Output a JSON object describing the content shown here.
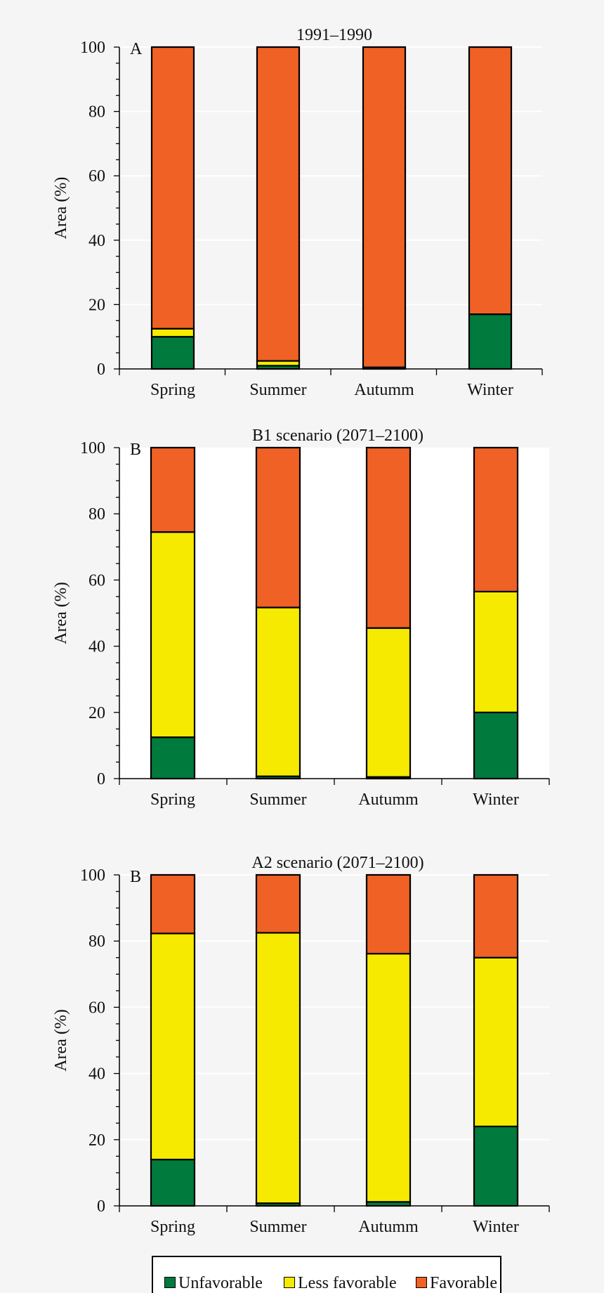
{
  "colors": {
    "Unfavorable": "#007a3d",
    "Less favorable": "#f6ea00",
    "Favorable": "#f06125",
    "background": "#f5f5f5"
  },
  "legend": {
    "items": [
      "Unfavorable",
      "Less favorable",
      "Favorable"
    ]
  },
  "chart_data": [
    {
      "type": "bar",
      "stacked": true,
      "title": "1991–1990",
      "panel_label": "A",
      "ylabel": "Area (%)",
      "ylim": [
        0,
        100
      ],
      "yticks": [
        0,
        20,
        40,
        60,
        80,
        100
      ],
      "grid": true,
      "plot_background": "#f5f5f5",
      "categories": [
        "Spring",
        "Summer",
        "Autumm",
        "Winter"
      ],
      "series": [
        {
          "name": "Unfavorable",
          "values": [
            10,
            1,
            0.5,
            17
          ]
        },
        {
          "name": "Less favorable",
          "values": [
            2.5,
            1.5,
            0,
            0
          ]
        },
        {
          "name": "Favorable",
          "values": [
            87.5,
            97.5,
            99.5,
            83
          ]
        }
      ]
    },
    {
      "type": "bar",
      "stacked": true,
      "title": "B1 scenario (2071–2100)",
      "panel_label": "B",
      "ylabel": "Area (%)",
      "ylim": [
        0,
        100
      ],
      "yticks": [
        0,
        20,
        40,
        60,
        80,
        100
      ],
      "grid": false,
      "plot_background": "#ffffff",
      "categories": [
        "Spring",
        "Summer",
        "Autumm",
        "Winter"
      ],
      "series": [
        {
          "name": "Unfavorable",
          "values": [
            12.5,
            0.7,
            0.5,
            20
          ]
        },
        {
          "name": "Less favorable",
          "values": [
            62,
            51,
            45,
            36.5
          ]
        },
        {
          "name": "Favorable",
          "values": [
            25.5,
            48.3,
            54.5,
            43.5
          ]
        }
      ]
    },
    {
      "type": "bar",
      "stacked": true,
      "title": "A2 scenario (2071–2100)",
      "panel_label": "B",
      "ylabel": "Area (%)",
      "ylim": [
        0,
        100
      ],
      "yticks": [
        0,
        20,
        40,
        60,
        80,
        100
      ],
      "grid": true,
      "plot_background": "#f5f5f5",
      "categories": [
        "Spring",
        "Summer",
        "Autumm",
        "Winter"
      ],
      "series": [
        {
          "name": "Unfavorable",
          "values": [
            14,
            0.8,
            1.2,
            24
          ]
        },
        {
          "name": "Less favorable",
          "values": [
            68.3,
            81.7,
            75,
            51
          ]
        },
        {
          "name": "Favorable",
          "values": [
            17.7,
            17.5,
            23.8,
            25
          ]
        }
      ]
    }
  ]
}
